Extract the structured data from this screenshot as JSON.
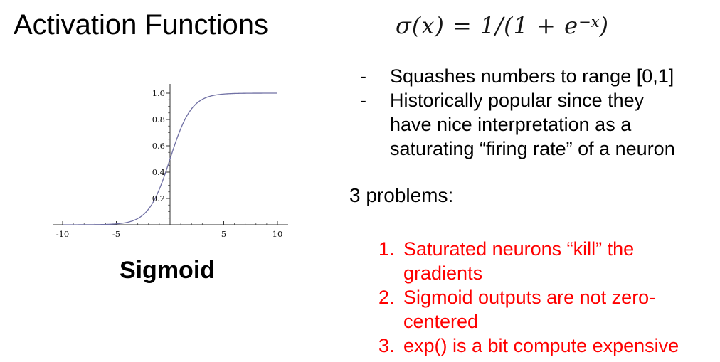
{
  "slide": {
    "title": "Activation Functions",
    "formula": {
      "main": "σ(x) = 1/(1 + e",
      "sup": "−x",
      "close": ")"
    },
    "figure_caption": "Sigmoid",
    "bullets": {
      "marker": "-",
      "items": [
        "Squashes numbers to range [0,1]",
        "Historically popular since they\nhave nice interpretation as a\nsaturating “firing rate” of a neuron"
      ]
    },
    "problems": {
      "heading": "3 problems:",
      "color": "#ff0000",
      "items": [
        {
          "number": "1.",
          "text": "Saturated neurons “kill” the\ngradients"
        },
        {
          "number": "2.",
          "text": "Sigmoid outputs are not zero-\ncentered"
        },
        {
          "number": "3.",
          "text": "exp() is a bit compute expensive"
        }
      ]
    }
  },
  "chart_data": {
    "type": "line",
    "title": "",
    "series": [
      {
        "name": "sigmoid",
        "formula": "y = 1/(1 + exp(-x))"
      }
    ],
    "key_points": [
      {
        "x": -10,
        "y": 4.54e-05
      },
      {
        "x": -5,
        "y": 0.0067
      },
      {
        "x": 0,
        "y": 0.5
      },
      {
        "x": 5,
        "y": 0.9933
      },
      {
        "x": 10,
        "y": 0.9999546
      }
    ],
    "x_range": [
      -10,
      10
    ],
    "y_range": [
      0,
      1
    ],
    "x_major_ticks": [
      -10,
      -5,
      5,
      10
    ],
    "x_tick_labels": [
      "-10",
      "-5",
      "5",
      "10"
    ],
    "x_minor_tick_step": 1,
    "y_major_ticks": [
      0.2,
      0.4,
      0.6,
      0.8,
      1.0
    ],
    "y_tick_labels": [
      "0.2",
      "0.4",
      "0.6",
      "0.8",
      "1.0"
    ],
    "y_minor_tick_step": 0.05,
    "grid": false,
    "legend": false,
    "curve_color": "#7070a4",
    "axis_color": "#303030",
    "tick_label_color": "#111111"
  }
}
